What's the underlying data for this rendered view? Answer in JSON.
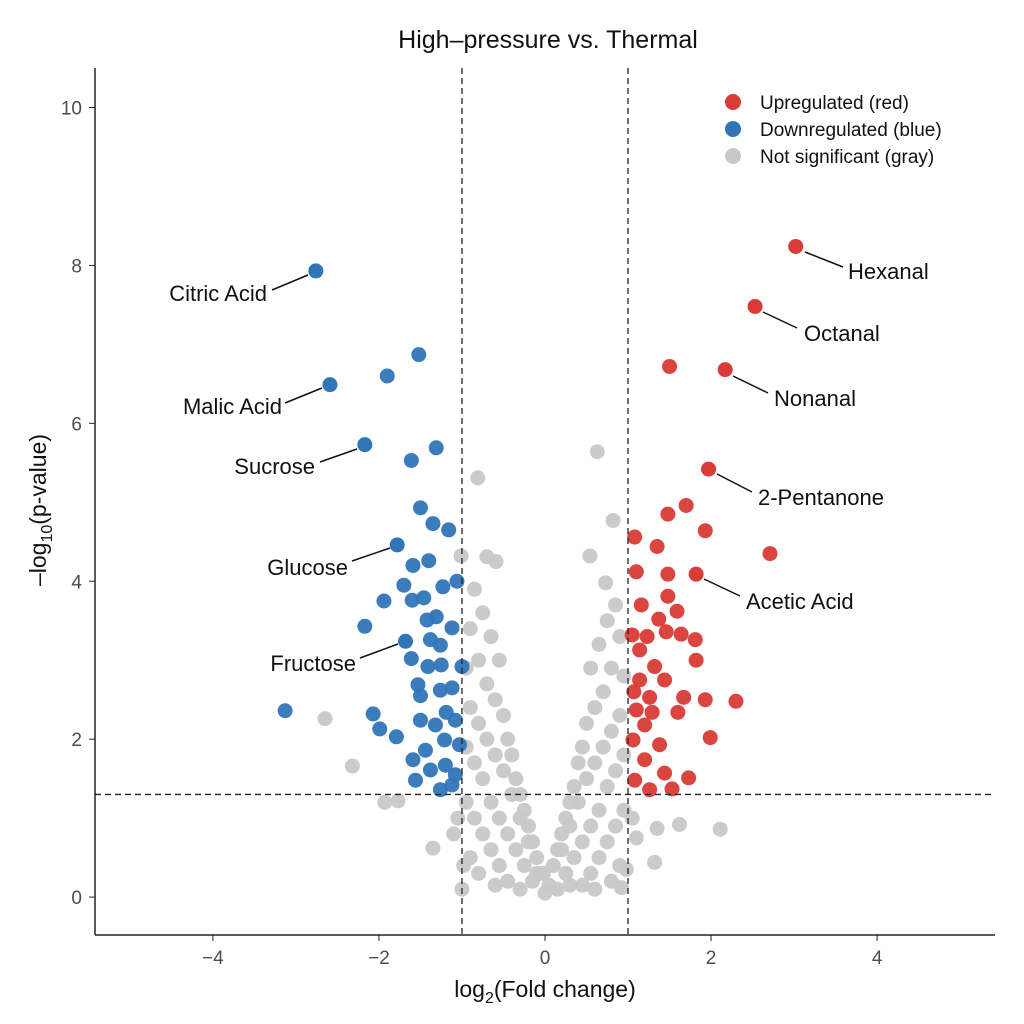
{
  "chart_data": {
    "type": "scatter",
    "title": "High–pressure vs. Thermal",
    "xlabel_prefix": "log",
    "xlabel_sub": "2",
    "xlabel_suffix": "(Fold change)",
    "ylabel_prefix": "–log",
    "ylabel_sub": "10",
    "ylabel_suffix": "(p-value)",
    "xlim": [
      -5.42,
      5.42
    ],
    "ylim": [
      -0.48,
      10.5
    ],
    "xticks": [
      -4,
      -2,
      0,
      2,
      4
    ],
    "xtick_labels": [
      "−4",
      "−2",
      "0",
      "2",
      "4"
    ],
    "yticks": [
      0,
      2,
      4,
      6,
      8,
      10
    ],
    "ytick_labels": [
      "0",
      "2",
      "4",
      "6",
      "8",
      "10"
    ],
    "grid": false,
    "thresholds": {
      "log2fc": [
        -1,
        1
      ],
      "neg_log10_p": 1.3
    },
    "legend_position": "top-right",
    "legend": [
      {
        "label": "Upregulated (red)",
        "color": "#d93b36"
      },
      {
        "label": "Downregulated (blue)",
        "color": "#2f75b8"
      },
      {
        "label": "Not significant (gray)",
        "color": "#c8c8c8"
      }
    ],
    "series": [
      {
        "name": "Not significant (gray)",
        "color": "#c8c8c8",
        "points": [
          [
            -0.81,
            5.31
          ],
          [
            0.63,
            5.64
          ],
          [
            0.82,
            4.77
          ],
          [
            -1.01,
            4.32
          ],
          [
            -0.7,
            4.31
          ],
          [
            -0.59,
            4.25
          ],
          [
            0.54,
            4.32
          ],
          [
            0.73,
            3.98
          ],
          [
            -2.65,
            2.26
          ],
          [
            -2.32,
            1.66
          ],
          [
            -1.93,
            1.2
          ],
          [
            -1.77,
            1.22
          ],
          [
            2.11,
            0.86
          ],
          [
            1.62,
            0.92
          ],
          [
            1.35,
            0.87
          ],
          [
            1.32,
            0.44
          ],
          [
            -1.35,
            0.62
          ],
          [
            -0.85,
            3.9
          ],
          [
            -0.75,
            3.6
          ],
          [
            -0.65,
            3.3
          ],
          [
            -0.55,
            3.0
          ],
          [
            -0.9,
            3.4
          ],
          [
            -0.8,
            3.0
          ],
          [
            -0.7,
            2.7
          ],
          [
            -0.95,
            2.9
          ],
          [
            -0.6,
            2.5
          ],
          [
            -0.5,
            2.3
          ],
          [
            -0.45,
            2.0
          ],
          [
            -0.4,
            1.8
          ],
          [
            -0.35,
            1.5
          ],
          [
            -0.3,
            1.3
          ],
          [
            -0.25,
            1.1
          ],
          [
            -0.2,
            0.9
          ],
          [
            -0.15,
            0.7
          ],
          [
            -0.1,
            0.5
          ],
          [
            -0.05,
            0.3
          ],
          [
            -0.9,
            2.4
          ],
          [
            -0.8,
            2.2
          ],
          [
            -0.7,
            2.0
          ],
          [
            -0.6,
            1.8
          ],
          [
            -0.5,
            1.6
          ],
          [
            -0.4,
            1.3
          ],
          [
            -0.3,
            1.0
          ],
          [
            -0.2,
            0.7
          ],
          [
            -0.1,
            0.3
          ],
          [
            -0.95,
            1.9
          ],
          [
            -0.85,
            1.7
          ],
          [
            -0.75,
            1.5
          ],
          [
            -0.65,
            1.2
          ],
          [
            -0.55,
            1.0
          ],
          [
            -0.45,
            0.8
          ],
          [
            -0.35,
            0.6
          ],
          [
            -0.25,
            0.4
          ],
          [
            -0.15,
            0.2
          ],
          [
            -0.95,
            1.2
          ],
          [
            -0.85,
            1.0
          ],
          [
            -0.75,
            0.8
          ],
          [
            -0.65,
            0.6
          ],
          [
            -0.55,
            0.4
          ],
          [
            -0.45,
            0.2
          ],
          [
            -0.9,
            0.5
          ],
          [
            -0.8,
            0.3
          ],
          [
            -0.6,
            0.15
          ],
          [
            -1.05,
            1.0
          ],
          [
            -1.1,
            0.8
          ],
          [
            -0.98,
            0.4
          ],
          [
            -1.0,
            0.1
          ],
          [
            -0.3,
            0.1
          ],
          [
            0.0,
            0.05
          ],
          [
            0.05,
            0.15
          ],
          [
            -0.02,
            0.3
          ],
          [
            0.85,
            3.7
          ],
          [
            0.75,
            3.5
          ],
          [
            0.65,
            3.2
          ],
          [
            0.55,
            2.9
          ],
          [
            0.9,
            3.3
          ],
          [
            0.8,
            2.9
          ],
          [
            0.7,
            2.6
          ],
          [
            0.95,
            2.8
          ],
          [
            0.6,
            2.4
          ],
          [
            0.5,
            2.2
          ],
          [
            0.45,
            1.9
          ],
          [
            0.4,
            1.7
          ],
          [
            0.35,
            1.4
          ],
          [
            0.3,
            1.2
          ],
          [
            0.25,
            1.0
          ],
          [
            0.2,
            0.8
          ],
          [
            0.15,
            0.6
          ],
          [
            0.1,
            0.4
          ],
          [
            0.9,
            2.3
          ],
          [
            0.8,
            2.1
          ],
          [
            0.7,
            1.9
          ],
          [
            0.6,
            1.7
          ],
          [
            0.5,
            1.5
          ],
          [
            0.4,
            1.2
          ],
          [
            0.3,
            0.9
          ],
          [
            0.2,
            0.6
          ],
          [
            0.95,
            1.8
          ],
          [
            0.85,
            1.6
          ],
          [
            0.75,
            1.4
          ],
          [
            0.65,
            1.1
          ],
          [
            0.55,
            0.9
          ],
          [
            0.45,
            0.7
          ],
          [
            0.35,
            0.5
          ],
          [
            0.25,
            0.3
          ],
          [
            0.95,
            1.1
          ],
          [
            0.85,
            0.9
          ],
          [
            0.75,
            0.7
          ],
          [
            0.65,
            0.5
          ],
          [
            0.55,
            0.3
          ],
          [
            0.45,
            0.15
          ],
          [
            0.9,
            0.4
          ],
          [
            0.8,
            0.2
          ],
          [
            0.6,
            0.1
          ],
          [
            1.05,
            1.0
          ],
          [
            1.1,
            0.75
          ],
          [
            0.98,
            0.35
          ],
          [
            0.92,
            0.12
          ],
          [
            0.3,
            0.15
          ],
          [
            0.15,
            0.1
          ]
        ]
      },
      {
        "name": "Downregulated (blue)",
        "color": "#2f75b8",
        "points": [
          [
            -1.52,
            6.87
          ],
          [
            -1.9,
            6.6
          ],
          [
            -1.31,
            5.69
          ],
          [
            -1.61,
            5.53
          ],
          [
            -1.5,
            4.93
          ],
          [
            -1.35,
            4.73
          ],
          [
            -1.16,
            4.65
          ],
          [
            -1.59,
            4.2
          ],
          [
            -1.4,
            4.26
          ],
          [
            -1.23,
            3.93
          ],
          [
            -1.06,
            4.0
          ],
          [
            -1.7,
            3.95
          ],
          [
            -1.94,
            3.75
          ],
          [
            -1.6,
            3.76
          ],
          [
            -1.46,
            3.79
          ],
          [
            -2.17,
            3.43
          ],
          [
            -1.42,
            3.51
          ],
          [
            -1.31,
            3.55
          ],
          [
            -1.12,
            3.41
          ],
          [
            -1.38,
            3.26
          ],
          [
            -1.26,
            3.19
          ],
          [
            -1.61,
            3.02
          ],
          [
            -1.41,
            2.92
          ],
          [
            -1.25,
            2.94
          ],
          [
            -1.0,
            2.92
          ],
          [
            -1.53,
            2.69
          ],
          [
            -1.5,
            2.55
          ],
          [
            -1.12,
            2.65
          ],
          [
            -3.13,
            2.36
          ],
          [
            -2.07,
            2.32
          ],
          [
            -1.99,
            2.13
          ],
          [
            -1.79,
            2.03
          ],
          [
            -1.26,
            2.62
          ],
          [
            -1.19,
            2.34
          ],
          [
            -1.5,
            2.24
          ],
          [
            -1.32,
            2.18
          ],
          [
            -1.08,
            2.24
          ],
          [
            -1.21,
            1.99
          ],
          [
            -1.03,
            1.93
          ],
          [
            -1.44,
            1.86
          ],
          [
            -1.59,
            1.74
          ],
          [
            -1.38,
            1.61
          ],
          [
            -1.2,
            1.67
          ],
          [
            -1.08,
            1.55
          ],
          [
            -1.56,
            1.48
          ],
          [
            -1.26,
            1.36
          ],
          [
            -1.12,
            1.42
          ]
        ]
      },
      {
        "name": "Upregulated (red)",
        "color": "#d93b36",
        "points": [
          [
            1.5,
            6.72
          ],
          [
            1.08,
            4.56
          ],
          [
            1.48,
            4.85
          ],
          [
            1.7,
            4.96
          ],
          [
            1.35,
            4.44
          ],
          [
            1.93,
            4.64
          ],
          [
            2.71,
            4.35
          ],
          [
            1.1,
            4.12
          ],
          [
            1.48,
            4.09
          ],
          [
            1.48,
            3.81
          ],
          [
            1.16,
            3.7
          ],
          [
            1.59,
            3.62
          ],
          [
            1.37,
            3.52
          ],
          [
            1.05,
            3.32
          ],
          [
            1.23,
            3.3
          ],
          [
            1.46,
            3.36
          ],
          [
            1.64,
            3.33
          ],
          [
            1.81,
            3.26
          ],
          [
            1.14,
            3.13
          ],
          [
            1.32,
            2.92
          ],
          [
            1.82,
            3.0
          ],
          [
            1.14,
            2.75
          ],
          [
            1.44,
            2.75
          ],
          [
            1.07,
            2.6
          ],
          [
            1.26,
            2.53
          ],
          [
            1.67,
            2.53
          ],
          [
            2.3,
            2.48
          ],
          [
            1.93,
            2.5
          ],
          [
            1.6,
            2.34
          ],
          [
            1.1,
            2.37
          ],
          [
            1.29,
            2.34
          ],
          [
            1.2,
            2.18
          ],
          [
            1.06,
            1.99
          ],
          [
            1.38,
            1.93
          ],
          [
            1.99,
            2.02
          ],
          [
            1.2,
            1.74
          ],
          [
            1.08,
            1.48
          ],
          [
            1.73,
            1.51
          ],
          [
            1.44,
            1.57
          ],
          [
            1.26,
            1.36
          ],
          [
            1.53,
            1.37
          ]
        ]
      }
    ],
    "labeled_points": [
      {
        "label": "Citric Acid",
        "x": -2.76,
        "y": 7.93,
        "color": "#2f75b8"
      },
      {
        "label": "Malic Acid",
        "x": -2.59,
        "y": 6.49,
        "color": "#2f75b8"
      },
      {
        "label": "Sucrose",
        "x": -2.17,
        "y": 5.73,
        "color": "#2f75b8"
      },
      {
        "label": "Glucose",
        "x": -1.78,
        "y": 4.46,
        "color": "#2f75b8"
      },
      {
        "label": "Fructose",
        "x": -1.68,
        "y": 3.24,
        "color": "#2f75b8"
      },
      {
        "label": "Hexanal",
        "x": 3.02,
        "y": 8.24,
        "color": "#d93b36"
      },
      {
        "label": "Octanal",
        "x": 2.53,
        "y": 7.48,
        "color": "#d93b36"
      },
      {
        "label": "Nonanal",
        "x": 2.17,
        "y": 6.68,
        "color": "#d93b36"
      },
      {
        "label": "2-Pentanone",
        "x": 1.97,
        "y": 5.42,
        "color": "#d93b36"
      },
      {
        "label": "Acetic Acid",
        "x": 1.82,
        "y": 4.09,
        "color": "#d93b36"
      }
    ]
  }
}
